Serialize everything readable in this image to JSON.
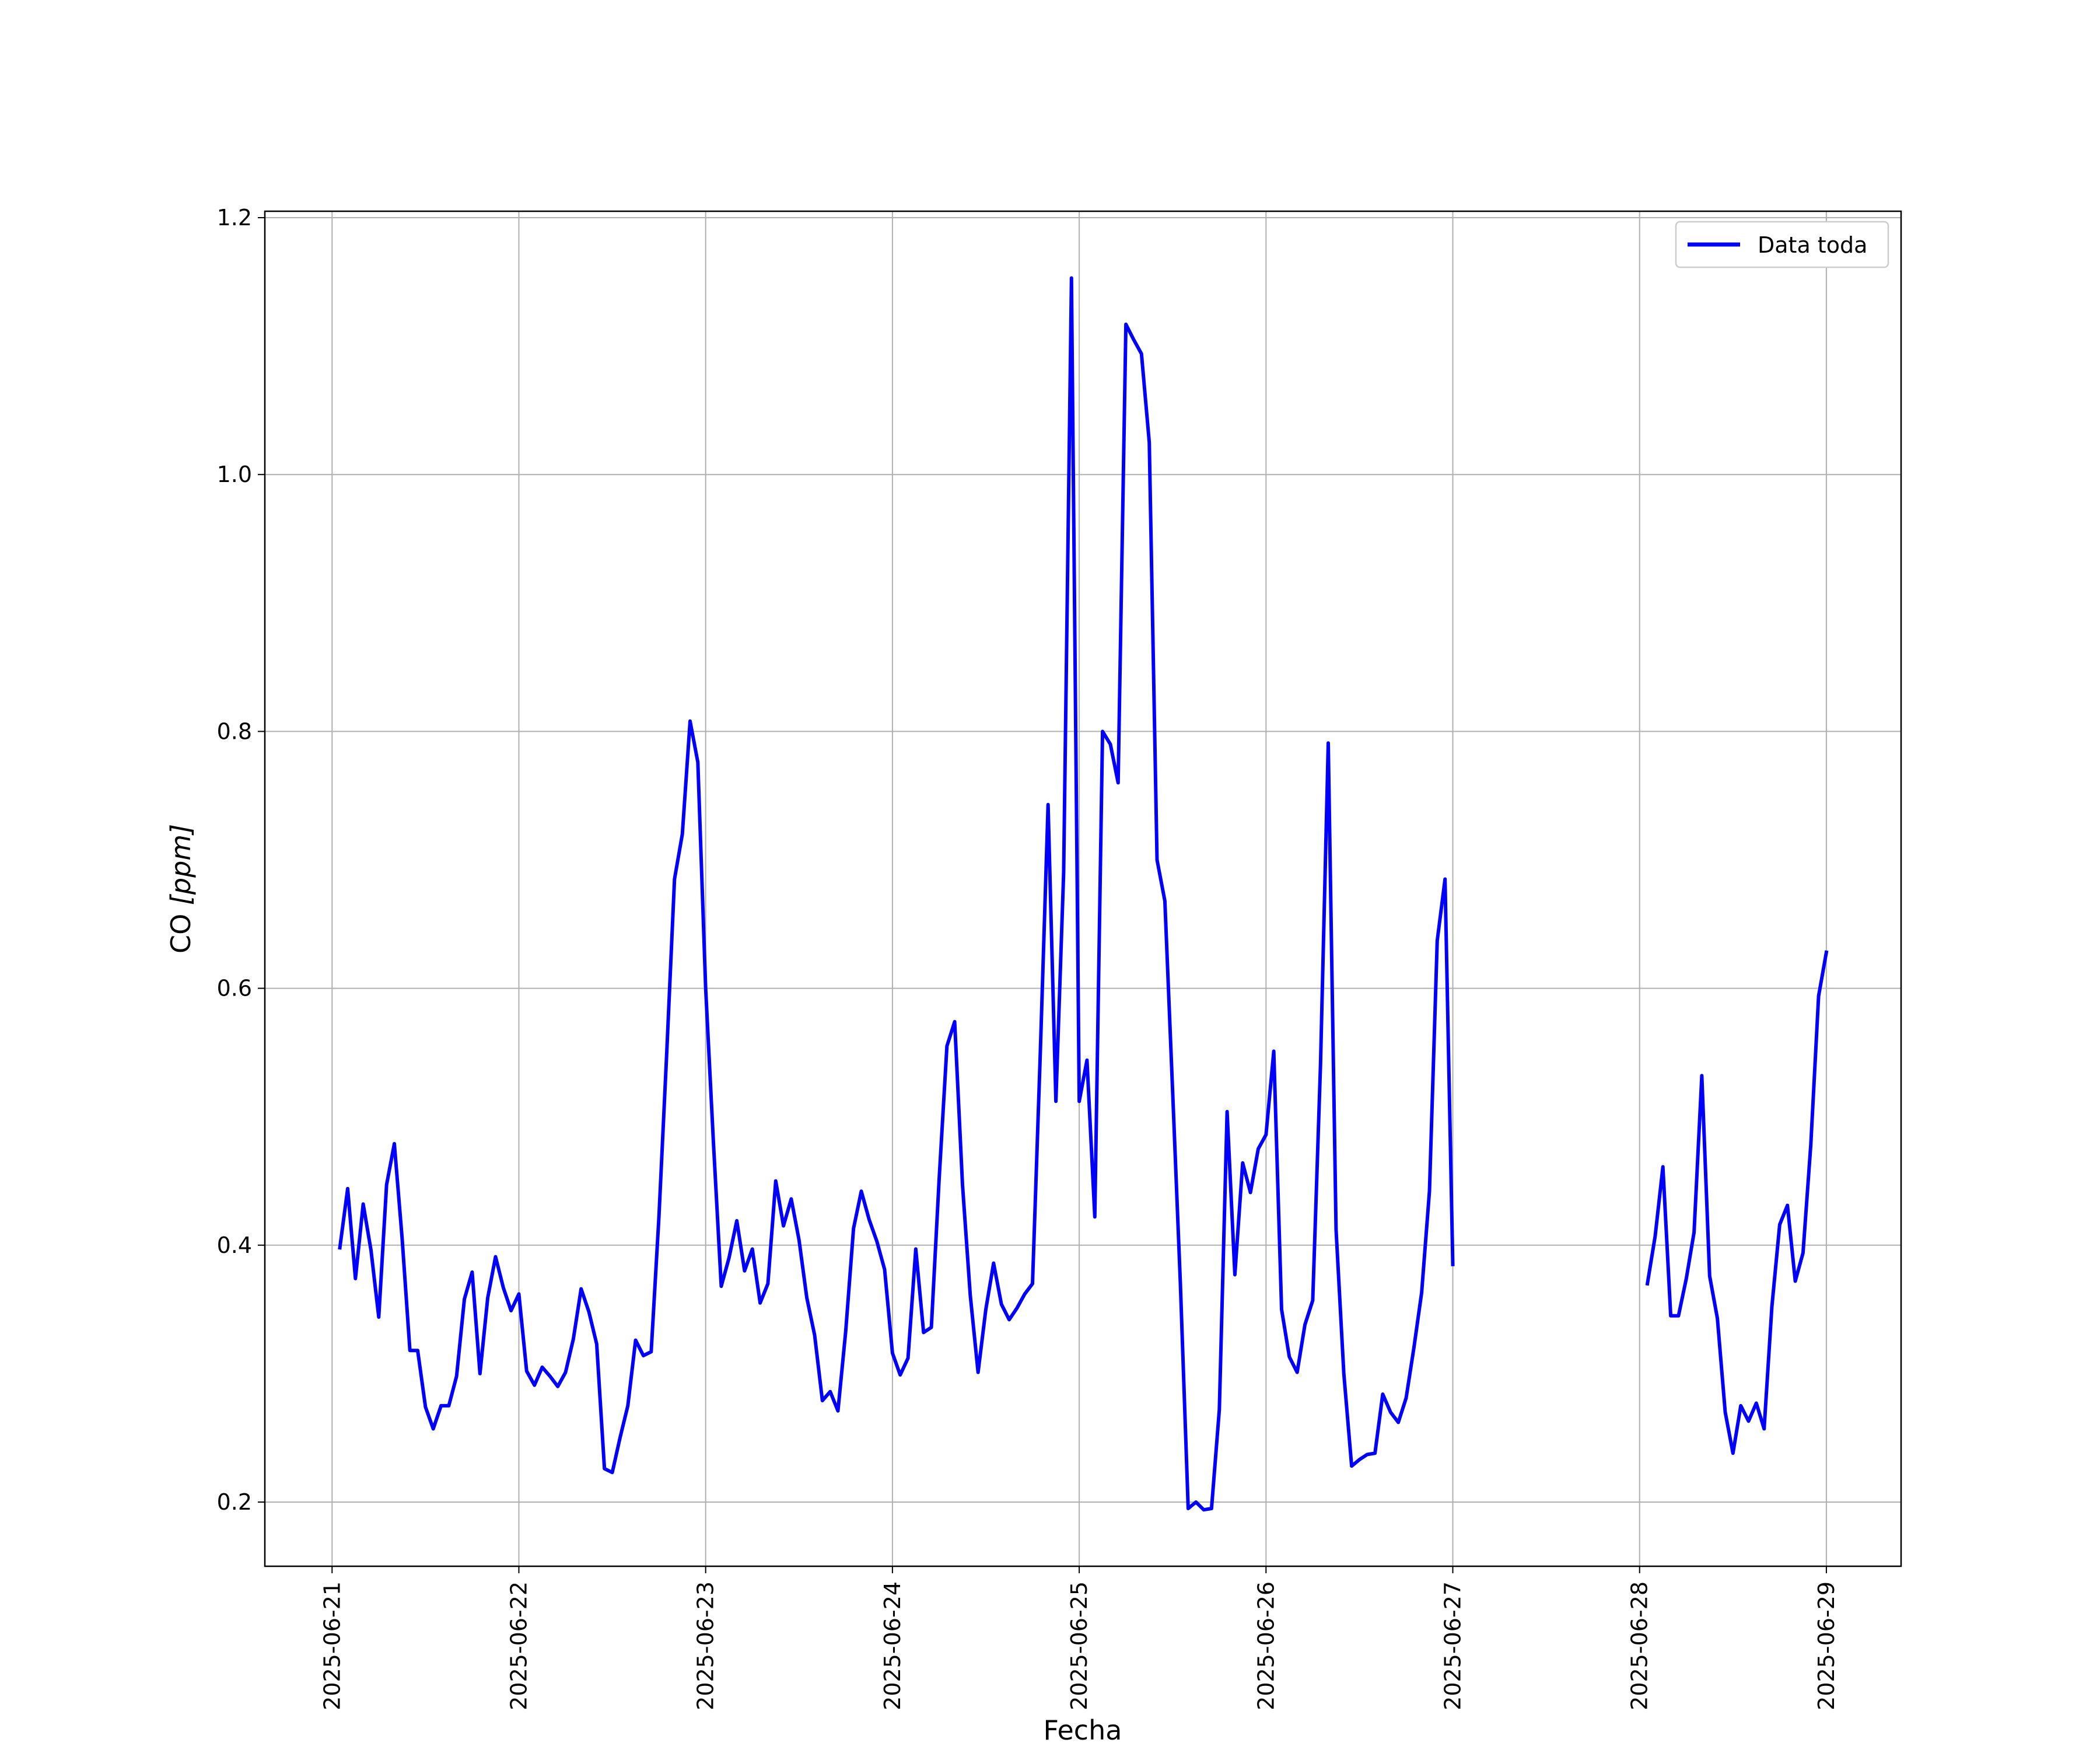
{
  "chart_data": {
    "type": "line",
    "title": "",
    "xlabel": "Fecha",
    "ylabel_main": "CO ",
    "ylabel_unit": "[ppm]",
    "ylim": [
      0.15,
      1.205
    ],
    "xlim_days": [
      -0.36,
      8.4
    ],
    "yticks": [
      0.2,
      0.4,
      0.6,
      0.8,
      1.0,
      1.2
    ],
    "ytick_labels": [
      "0.2",
      "0.4",
      "0.6",
      "0.8",
      "1.0",
      "1.2"
    ],
    "xtick_labels": [
      "2025-06-21",
      "2025-06-22",
      "2025-06-23",
      "2025-06-24",
      "2025-06-25",
      "2025-06-26",
      "2025-06-27",
      "2025-06-28",
      "2025-06-29"
    ],
    "grid": true,
    "legend_position": "top-right",
    "series": [
      {
        "name": "Data toda",
        "color": "#0000ff",
        "segments": [
          {
            "x": [
              "2025-06-21 01:00",
              "2025-06-21 02:00",
              "2025-06-21 03:00",
              "2025-06-21 04:00",
              "2025-06-21 05:00",
              "2025-06-21 06:00",
              "2025-06-21 07:00",
              "2025-06-21 08:00",
              "2025-06-21 09:00",
              "2025-06-21 10:00",
              "2025-06-21 11:00",
              "2025-06-21 12:00",
              "2025-06-21 13:00",
              "2025-06-21 14:00",
              "2025-06-21 15:00",
              "2025-06-21 16:00",
              "2025-06-21 17:00",
              "2025-06-21 18:00",
              "2025-06-21 19:00",
              "2025-06-21 20:00",
              "2025-06-21 21:00",
              "2025-06-21 22:00",
              "2025-06-21 23:00",
              "2025-06-22 00:00",
              "2025-06-22 01:00",
              "2025-06-22 02:00",
              "2025-06-22 03:00",
              "2025-06-22 04:00",
              "2025-06-22 05:00",
              "2025-06-22 06:00",
              "2025-06-22 07:00",
              "2025-06-22 08:00",
              "2025-06-22 09:00",
              "2025-06-22 10:00",
              "2025-06-22 11:00",
              "2025-06-22 12:00",
              "2025-06-22 13:00",
              "2025-06-22 14:00",
              "2025-06-22 15:00",
              "2025-06-22 16:00",
              "2025-06-22 17:00",
              "2025-06-22 18:00",
              "2025-06-22 19:00",
              "2025-06-22 20:00",
              "2025-06-22 21:00",
              "2025-06-22 22:00",
              "2025-06-22 23:00",
              "2025-06-23 00:00",
              "2025-06-23 01:00",
              "2025-06-23 02:00",
              "2025-06-23 03:00",
              "2025-06-23 04:00",
              "2025-06-23 05:00",
              "2025-06-23 06:00",
              "2025-06-23 07:00",
              "2025-06-23 08:00",
              "2025-06-23 09:00",
              "2025-06-23 10:00",
              "2025-06-23 11:00",
              "2025-06-23 12:00",
              "2025-06-23 13:00",
              "2025-06-23 14:00",
              "2025-06-23 15:00",
              "2025-06-23 16:00",
              "2025-06-23 17:00",
              "2025-06-23 18:00",
              "2025-06-23 19:00",
              "2025-06-23 20:00",
              "2025-06-23 21:00",
              "2025-06-23 22:00",
              "2025-06-23 23:00",
              "2025-06-24 00:00",
              "2025-06-24 01:00",
              "2025-06-24 02:00",
              "2025-06-24 03:00",
              "2025-06-24 04:00",
              "2025-06-24 05:00",
              "2025-06-24 06:00",
              "2025-06-24 07:00",
              "2025-06-24 08:00",
              "2025-06-24 09:00",
              "2025-06-24 10:00",
              "2025-06-24 11:00",
              "2025-06-24 12:00",
              "2025-06-24 13:00",
              "2025-06-24 14:00",
              "2025-06-24 15:00",
              "2025-06-24 16:00",
              "2025-06-24 17:00",
              "2025-06-24 18:00",
              "2025-06-24 19:00",
              "2025-06-24 20:00",
              "2025-06-24 21:00",
              "2025-06-24 22:00",
              "2025-06-24 23:00",
              "2025-06-25 00:00",
              "2025-06-25 01:00",
              "2025-06-25 02:00",
              "2025-06-25 03:00",
              "2025-06-25 04:00",
              "2025-06-25 05:00",
              "2025-06-25 06:00",
              "2025-06-25 07:00",
              "2025-06-25 08:00",
              "2025-06-25 09:00",
              "2025-06-25 10:00",
              "2025-06-25 11:00",
              "2025-06-25 12:00",
              "2025-06-25 13:00",
              "2025-06-25 14:00",
              "2025-06-25 15:00",
              "2025-06-25 16:00",
              "2025-06-25 17:00",
              "2025-06-25 18:00",
              "2025-06-25 19:00",
              "2025-06-25 20:00",
              "2025-06-25 21:00",
              "2025-06-25 22:00",
              "2025-06-25 23:00",
              "2025-06-26 00:00",
              "2025-06-26 01:00",
              "2025-06-26 02:00",
              "2025-06-26 03:00",
              "2025-06-26 04:00",
              "2025-06-26 05:00",
              "2025-06-26 06:00",
              "2025-06-26 07:00",
              "2025-06-26 08:00",
              "2025-06-26 09:00",
              "2025-06-26 10:00",
              "2025-06-26 11:00",
              "2025-06-26 12:00",
              "2025-06-26 13:00",
              "2025-06-26 14:00",
              "2025-06-26 15:00",
              "2025-06-26 16:00",
              "2025-06-26 17:00",
              "2025-06-26 18:00",
              "2025-06-26 19:00",
              "2025-06-26 20:00",
              "2025-06-26 21:00",
              "2025-06-26 22:00",
              "2025-06-26 23:00",
              "2025-06-27 00:00"
            ],
            "y": [
              0.398,
              0.444,
              0.374,
              0.432,
              0.396,
              0.344,
              0.447,
              0.479,
              0.405,
              0.318,
              0.318,
              0.274,
              0.257,
              0.275,
              0.275,
              0.298,
              0.358,
              0.379,
              0.3,
              0.359,
              0.391,
              0.367,
              0.349,
              0.362,
              0.302,
              0.291,
              0.305,
              0.298,
              0.29,
              0.301,
              0.327,
              0.366,
              0.348,
              0.323,
              0.226,
              0.223,
              0.25,
              0.275,
              0.326,
              0.314,
              0.317,
              0.422,
              0.55,
              0.685,
              0.72,
              0.808,
              0.776,
              0.6,
              0.48,
              0.368,
              0.39,
              0.419,
              0.38,
              0.397,
              0.355,
              0.37,
              0.45,
              0.415,
              0.436,
              0.404,
              0.359,
              0.33,
              0.279,
              0.286,
              0.271,
              0.333,
              0.413,
              0.442,
              0.42,
              0.403,
              0.381,
              0.316,
              0.299,
              0.312,
              0.397,
              0.332,
              0.336,
              0.451,
              0.555,
              0.574,
              0.447,
              0.361,
              0.301,
              0.35,
              0.386,
              0.354,
              0.342,
              0.351,
              0.362,
              0.37,
              0.55,
              0.743,
              0.512,
              0.69,
              1.153,
              0.512,
              0.544,
              0.422,
              0.8,
              0.79,
              0.76,
              1.117,
              1.105,
              1.094,
              1.025,
              0.7,
              0.668,
              0.52,
              0.37,
              0.195,
              0.2,
              0.194,
              0.195,
              0.272,
              0.504,
              0.377,
              0.464,
              0.441,
              0.475,
              0.486,
              0.551,
              0.35,
              0.313,
              0.301,
              0.338,
              0.357,
              0.54,
              0.791,
              0.412,
              0.3,
              0.228,
              0.233,
              0.237,
              0.238,
              0.284,
              0.27,
              0.262,
              0.281,
              0.32,
              0.363,
              0.442,
              0.637,
              0.685,
              0.385
            ]
          },
          {
            "x": [
              "2025-06-28 01:00",
              "2025-06-28 02:00",
              "2025-06-28 03:00",
              "2025-06-28 04:00",
              "2025-06-28 05:00",
              "2025-06-28 06:00",
              "2025-06-28 07:00",
              "2025-06-28 08:00",
              "2025-06-28 09:00",
              "2025-06-28 10:00",
              "2025-06-28 11:00",
              "2025-06-28 12:00",
              "2025-06-28 13:00",
              "2025-06-28 14:00",
              "2025-06-28 15:00",
              "2025-06-28 16:00",
              "2025-06-28 17:00",
              "2025-06-28 18:00",
              "2025-06-28 19:00",
              "2025-06-28 20:00",
              "2025-06-28 21:00",
              "2025-06-28 22:00",
              "2025-06-28 23:00",
              "2025-06-29 00:00"
            ],
            "y": [
              0.37,
              0.407,
              0.461,
              0.345,
              0.345,
              0.374,
              0.41,
              0.532,
              0.376,
              0.343,
              0.27,
              0.238,
              0.275,
              0.263,
              0.277,
              0.257,
              0.352,
              0.416,
              0.431,
              0.372,
              0.394,
              0.478,
              0.594,
              0.628
            ]
          }
        ]
      }
    ]
  }
}
